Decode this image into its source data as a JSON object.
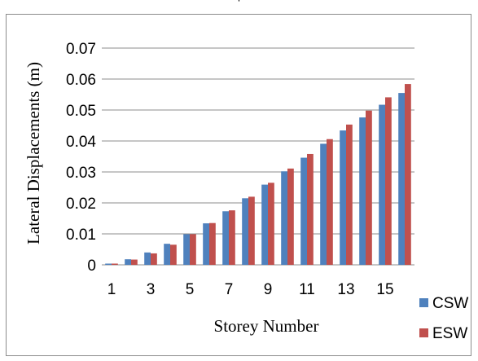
{
  "header": {
    "cropped_title": "'"
  },
  "chart_data": {
    "type": "bar",
    "categories": [
      "1",
      "2",
      "3",
      "4",
      "5",
      "6",
      "7",
      "8",
      "9",
      "10",
      "11",
      "12",
      "13",
      "14",
      "15",
      "16"
    ],
    "tick_labels_shown": [
      "1",
      "3",
      "5",
      "7",
      "9",
      "11",
      "13",
      "15"
    ],
    "series": [
      {
        "name": "CSW",
        "color": "#4f81bd",
        "values": [
          0.0004,
          0.0018,
          0.004,
          0.0068,
          0.0099,
          0.0134,
          0.0173,
          0.0215,
          0.0259,
          0.0302,
          0.0346,
          0.0391,
          0.0434,
          0.0476,
          0.0517,
          0.0555
        ]
      },
      {
        "name": "ESW",
        "color": "#c0504d",
        "values": [
          0.0004,
          0.0017,
          0.0037,
          0.0065,
          0.0099,
          0.0135,
          0.0176,
          0.022,
          0.0265,
          0.0311,
          0.0358,
          0.0406,
          0.0453,
          0.0498,
          0.0541,
          0.0584
        ]
      }
    ],
    "y_tick_labels": [
      "0",
      "0.01",
      "0.02",
      "0.03",
      "0.04",
      "0.05",
      "0.06",
      "0.07"
    ],
    "ylim": [
      0,
      0.07
    ],
    "xlabel": "Storey Number",
    "ylabel": "Lateral Displacements (m)",
    "grid": true,
    "legend_position": "bottom-right"
  }
}
